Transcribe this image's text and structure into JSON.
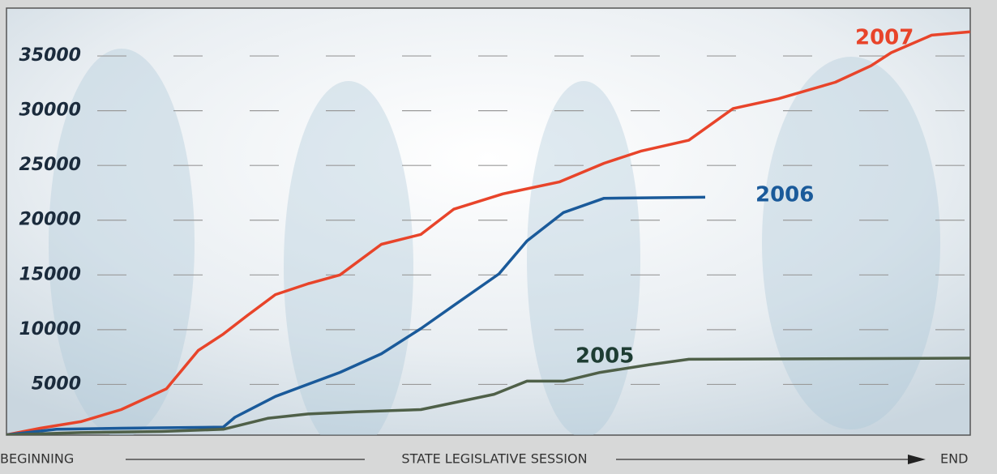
{
  "chart_data": {
    "type": "line",
    "x_label_start": "BEGINNING",
    "x_label": "STATE LEGISLATIVE SESSION",
    "x_label_end": "END",
    "xlim": [
      0,
      100
    ],
    "ylim": [
      0,
      39000
    ],
    "yticks": [
      5000,
      10000,
      15000,
      20000,
      25000,
      30000,
      35000
    ],
    "grid": true,
    "series": [
      {
        "name": "2007",
        "color": "#e8442a",
        "x": [
          0,
          3.5,
          7.7,
          11.9,
          16.6,
          19.9,
          22.5,
          25,
          27.9,
          31.3,
          34.6,
          38.9,
          43,
          46.4,
          51.5,
          57.4,
          62,
          65.8,
          70.8,
          75.4,
          80.1,
          86,
          89.7,
          91.8,
          96,
          100
        ],
        "values": [
          400,
          1000,
          1600,
          2700,
          4600,
          8100,
          9600,
          11300,
          13200,
          14200,
          15000,
          17800,
          18700,
          21000,
          22400,
          23500,
          25200,
          26300,
          27300,
          30200,
          31100,
          32600,
          34100,
          35300,
          36900,
          37200
        ]
      },
      {
        "name": "2006",
        "color": "#1a5a9a",
        "x": [
          0,
          5.2,
          11.9,
          22.5,
          23.7,
          27.9,
          34.6,
          38.9,
          43,
          46.4,
          51.1,
          54,
          57.8,
          62,
          72.5
        ],
        "values": [
          400,
          900,
          1000,
          1100,
          2000,
          3900,
          6100,
          7800,
          10100,
          12200,
          15100,
          18100,
          20700,
          22000,
          22100
        ]
      },
      {
        "name": "2005",
        "color": "#4f6048",
        "x": [
          0,
          7.7,
          16.1,
          22.5,
          27.1,
          31.3,
          36.3,
          43,
          50.6,
          54,
          57.8,
          61.6,
          66.7,
          70.8,
          100
        ],
        "values": [
          400,
          600,
          700,
          900,
          1900,
          2300,
          2500,
          2700,
          4100,
          5300,
          5300,
          6100,
          6800,
          7300,
          7400
        ]
      }
    ]
  }
}
